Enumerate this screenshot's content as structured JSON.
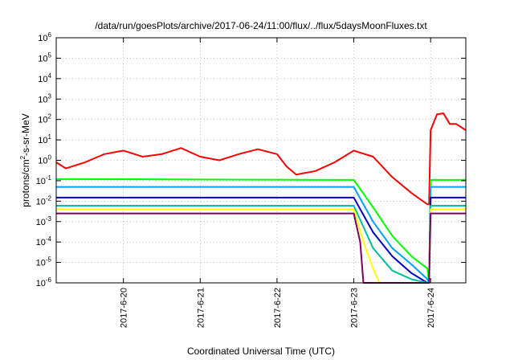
{
  "chart_data": {
    "type": "line",
    "title": "/data/run/goesPlots/archive/2017-06-24/11:00/flux/../flux/5daysMoonFluxes.txt",
    "xlabel": "Coordinated Universal Time (UTC)",
    "ylabel": {
      "prefix": "protons/cm",
      "sup": "2",
      "suffix": "-s-sr-MeV"
    },
    "y_scale": "log",
    "ylim": [
      1e-06,
      1000000
    ],
    "y_ticks": [
      {
        "exp": "-6",
        "value": 1e-06
      },
      {
        "exp": "-5",
        "value": 1e-05
      },
      {
        "exp": "-4",
        "value": 0.0001
      },
      {
        "exp": "-3",
        "value": 0.001
      },
      {
        "exp": "-2",
        "value": 0.01
      },
      {
        "exp": "-1",
        "value": 0.1
      },
      {
        "exp": "0",
        "value": 1
      },
      {
        "exp": "1",
        "value": 10
      },
      {
        "exp": "2",
        "value": 100
      },
      {
        "exp": "3",
        "value": 1000
      },
      {
        "exp": "4",
        "value": 10000
      },
      {
        "exp": "5",
        "value": 100000
      },
      {
        "exp": "6",
        "value": 1000000
      }
    ],
    "y_tick_base": "10",
    "xlim": [
      "2017-06-19 03:00",
      "2017-06-24 11:00"
    ],
    "x_ticks": [
      "2017-6-20",
      "2017-6-21",
      "2017-6-22",
      "2017-6-23",
      "2017-6-24"
    ],
    "grid": true,
    "series": [
      {
        "color": "#ff0000",
        "x": [
          "2017-06-19 03:00",
          "2017-06-19 06:00",
          "2017-06-19 12:00",
          "2017-06-19 18:00",
          "2017-06-20 00:00",
          "2017-06-20 06:00",
          "2017-06-20 12:00",
          "2017-06-20 18:00",
          "2017-06-21 00:00",
          "2017-06-21 06:00",
          "2017-06-21 12:00",
          "2017-06-21 18:00",
          "2017-06-22 00:00",
          "2017-06-22 03:00",
          "2017-06-22 06:00",
          "2017-06-22 12:00",
          "2017-06-22 18:00",
          "2017-06-23 00:00",
          "2017-06-23 06:00",
          "2017-06-23 12:00",
          "2017-06-23 18:00",
          "2017-06-23 23:00",
          "2017-06-23 23:30",
          "2017-06-24 00:00",
          "2017-06-24 02:00",
          "2017-06-24 04:00",
          "2017-06-24 06:00",
          "2017-06-24 08:00",
          "2017-06-24 11:00"
        ],
        "values": [
          0.8,
          0.4,
          0.8,
          2,
          3,
          1.5,
          2,
          4,
          1.5,
          1,
          2,
          3.5,
          2,
          0.5,
          0.2,
          0.3,
          0.8,
          3,
          1.5,
          0.15,
          0.025,
          0.007,
          0.007,
          30,
          180,
          200,
          60,
          60,
          30
        ]
      },
      {
        "color": "#00ff00",
        "x": [
          "2017-06-19 03:00",
          "2017-06-23 00:00",
          "2017-06-23 06:00",
          "2017-06-23 12:00",
          "2017-06-23 18:00",
          "2017-06-23 23:00",
          "2017-06-23 23:30",
          "2017-06-24 00:00",
          "2017-06-24 11:00"
        ],
        "values": [
          0.12,
          0.11,
          0.005,
          0.0002,
          2e-05,
          5e-06,
          1e-06,
          0.11,
          0.11
        ]
      },
      {
        "color": "#00a0ff",
        "x": [
          "2017-06-19 03:00",
          "2017-06-23 00:00",
          "2017-06-23 06:00",
          "2017-06-23 12:00",
          "2017-06-23 18:00",
          "2017-06-23 23:00",
          "2017-06-23 23:30",
          "2017-06-24 00:00",
          "2017-06-24 11:00"
        ],
        "values": [
          0.05,
          0.05,
          0.001,
          5e-05,
          8e-06,
          1.5e-06,
          1e-06,
          0.05,
          0.05
        ]
      },
      {
        "color": "#0000cc",
        "x": [
          "2017-06-19 03:00",
          "2017-06-23 00:00",
          "2017-06-23 06:00",
          "2017-06-23 12:00",
          "2017-06-23 18:00",
          "2017-06-23 23:00",
          "2017-06-23 23:30",
          "2017-06-24 00:00",
          "2017-06-24 11:00"
        ],
        "values": [
          0.015,
          0.015,
          0.0003,
          2e-05,
          3e-06,
          1e-06,
          1e-06,
          0.015,
          0.015
        ]
      },
      {
        "color": "#00c0a0",
        "x": [
          "2017-06-19 03:00",
          "2017-06-23 00:00",
          "2017-06-23 06:00",
          "2017-06-23 12:00",
          "2017-06-23 18:00",
          "2017-06-23 23:00",
          "2017-06-23 23:30",
          "2017-06-24 00:00",
          "2017-06-24 11:00"
        ],
        "values": [
          0.006,
          0.006,
          5e-05,
          4e-06,
          1.5e-06,
          1e-06,
          1e-06,
          0.006,
          0.006
        ]
      },
      {
        "color": "#ffff00",
        "x": [
          "2017-06-19 03:00",
          "2017-06-23 00:00",
          "2017-06-23 03:00",
          "2017-06-23 06:00",
          "2017-06-23 08:00",
          "2017-06-23 23:00",
          "2017-06-23 23:30",
          "2017-06-24 00:00",
          "2017-06-24 11:00"
        ],
        "values": [
          0.004,
          0.004,
          0.0001,
          5e-06,
          1e-06,
          1e-06,
          1e-06,
          0.004,
          0.004
        ]
      },
      {
        "color": "#800060",
        "x": [
          "2017-06-19 03:00",
          "2017-06-23 00:00",
          "2017-06-23 02:00",
          "2017-06-23 03:00",
          "2017-06-23 23:00",
          "2017-06-23 23:30",
          "2017-06-24 00:00",
          "2017-06-24 11:00"
        ],
        "values": [
          0.0025,
          0.0025,
          0.0001,
          1e-06,
          1e-06,
          1e-06,
          0.0025,
          0.0025
        ]
      }
    ]
  }
}
